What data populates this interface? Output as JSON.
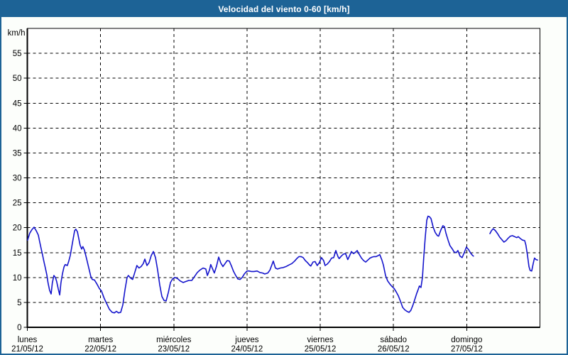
{
  "titlebar": {
    "title": "Velocidad del viento 0-60 [km/h]"
  },
  "chart_data": {
    "type": "line",
    "title": "Velocidad del viento 0-60 [km/h]",
    "unit_label": "km/h",
    "line_color": "#1414cc",
    "grid_style": "dashed",
    "y_axis": {
      "min": 0,
      "max": 60,
      "tick_step": 5,
      "tick_values": [
        0,
        5,
        10,
        15,
        20,
        25,
        30,
        35,
        40,
        45,
        50,
        55
      ],
      "grid_values": [
        5,
        10,
        15,
        20,
        25,
        30,
        35,
        40,
        45,
        50,
        55
      ]
    },
    "x_axis": {
      "range_hours": [
        0,
        168
      ],
      "day_boundary_hours": [
        24,
        48,
        72,
        96,
        120,
        144
      ],
      "days": [
        {
          "name": "lunes",
          "date": "21/05/12"
        },
        {
          "name": "martes",
          "date": "22/05/12"
        },
        {
          "name": "miércoles",
          "date": "23/05/12"
        },
        {
          "name": "jueves",
          "date": "24/05/12"
        },
        {
          "name": "viernes",
          "date": "25/05/12"
        },
        {
          "name": "sábado",
          "date": "26/05/12"
        },
        {
          "name": "domingo",
          "date": "27/05/12"
        }
      ]
    },
    "series": [
      {
        "name": "velocidad del viento",
        "color": "#1414cc",
        "points_format": "[hours_since_monday_00h, km/h]",
        "segments": [
          [
            [
              0.1,
              17.5
            ],
            [
              0.8,
              18.9
            ],
            [
              1.5,
              19.6
            ],
            [
              2.2,
              20.1
            ],
            [
              2.9,
              19.4
            ],
            [
              3.6,
              18.5
            ],
            [
              4.0,
              17.3
            ],
            [
              4.5,
              15.9
            ],
            [
              5.0,
              14.5
            ],
            [
              5.4,
              13.3
            ],
            [
              5.9,
              11.9
            ],
            [
              6.4,
              10.5
            ],
            [
              6.8,
              8.9
            ],
            [
              7.3,
              7.4
            ],
            [
              7.8,
              6.7
            ],
            [
              8.2,
              8.9
            ],
            [
              8.7,
              10.4
            ],
            [
              9.2,
              10.0
            ],
            [
              9.6,
              9.2
            ],
            [
              10.1,
              7.8
            ],
            [
              10.6,
              6.5
            ],
            [
              11.0,
              8.9
            ],
            [
              11.5,
              10.7
            ],
            [
              12.0,
              12.1
            ],
            [
              12.4,
              12.6
            ],
            [
              13.1,
              12.4
            ],
            [
              13.6,
              13.3
            ],
            [
              14.1,
              14.5
            ],
            [
              14.8,
              17.0
            ],
            [
              15.5,
              19.4
            ],
            [
              15.9,
              19.7
            ],
            [
              16.4,
              19.2
            ],
            [
              16.8,
              18.0
            ],
            [
              17.3,
              16.5
            ],
            [
              17.8,
              15.7
            ],
            [
              18.2,
              16.2
            ],
            [
              18.7,
              15.5
            ],
            [
              19.4,
              13.8
            ],
            [
              20.1,
              12.0
            ],
            [
              20.8,
              10.2
            ],
            [
              21.3,
              9.6
            ],
            [
              22.0,
              9.5
            ],
            [
              22.7,
              8.8
            ],
            [
              23.6,
              7.8
            ],
            [
              24.3,
              7.3
            ],
            [
              25.2,
              5.8
            ],
            [
              25.9,
              4.9
            ],
            [
              26.9,
              3.6
            ],
            [
              27.8,
              3.0
            ],
            [
              28.5,
              2.9
            ],
            [
              29.2,
              3.2
            ],
            [
              29.9,
              2.9
            ],
            [
              30.6,
              3.0
            ],
            [
              31.3,
              4.5
            ],
            [
              32.0,
              7.5
            ],
            [
              32.7,
              10.0
            ],
            [
              33.1,
              10.4
            ],
            [
              33.8,
              9.9
            ],
            [
              34.5,
              9.6
            ],
            [
              35.2,
              11.0
            ],
            [
              35.9,
              12.4
            ],
            [
              36.6,
              11.9
            ],
            [
              37.3,
              12.2
            ],
            [
              38.0,
              12.8
            ],
            [
              38.5,
              13.7
            ],
            [
              39.2,
              12.4
            ],
            [
              39.9,
              13.0
            ],
            [
              40.6,
              14.4
            ],
            [
              41.3,
              15.2
            ],
            [
              42.0,
              14.0
            ],
            [
              42.7,
              11.5
            ],
            [
              43.4,
              8.5
            ],
            [
              44.1,
              6.2
            ],
            [
              44.8,
              5.4
            ],
            [
              45.5,
              5.3
            ],
            [
              46.2,
              7.0
            ],
            [
              46.9,
              9.0
            ],
            [
              47.6,
              9.7
            ],
            [
              48.3,
              10.0
            ],
            [
              49.2,
              9.8
            ],
            [
              50.1,
              9.3
            ],
            [
              51.1,
              9.0
            ],
            [
              52.0,
              9.2
            ],
            [
              52.9,
              9.4
            ],
            [
              53.9,
              9.4
            ],
            [
              54.8,
              10.2
            ],
            [
              55.7,
              11.0
            ],
            [
              56.6,
              11.5
            ],
            [
              57.6,
              11.9
            ],
            [
              58.5,
              11.7
            ],
            [
              59.0,
              10.4
            ],
            [
              59.7,
              11.5
            ],
            [
              60.1,
              12.6
            ],
            [
              60.8,
              11.6
            ],
            [
              61.3,
              10.9
            ],
            [
              62.0,
              12.3
            ],
            [
              62.7,
              14.1
            ],
            [
              63.4,
              12.9
            ],
            [
              64.1,
              12.2
            ],
            [
              64.8,
              12.8
            ],
            [
              65.5,
              13.4
            ],
            [
              66.2,
              13.3
            ],
            [
              66.9,
              12.3
            ],
            [
              67.6,
              11.2
            ],
            [
              68.3,
              10.4
            ],
            [
              69.0,
              9.7
            ],
            [
              69.7,
              9.6
            ],
            [
              70.4,
              10.0
            ],
            [
              71.1,
              10.7
            ],
            [
              72.0,
              11.3
            ],
            [
              72.7,
              11.3
            ],
            [
              73.4,
              11.2
            ],
            [
              74.3,
              11.2
            ],
            [
              75.3,
              11.3
            ],
            [
              76.2,
              11.0
            ],
            [
              77.1,
              10.9
            ],
            [
              77.8,
              10.7
            ],
            [
              78.8,
              10.9
            ],
            [
              79.5,
              11.5
            ],
            [
              80.6,
              13.3
            ],
            [
              81.3,
              11.9
            ],
            [
              82.0,
              11.7
            ],
            [
              82.9,
              11.9
            ],
            [
              83.9,
              12.0
            ],
            [
              84.8,
              12.2
            ],
            [
              85.7,
              12.5
            ],
            [
              86.7,
              12.8
            ],
            [
              87.6,
              13.3
            ],
            [
              88.3,
              13.8
            ],
            [
              89.0,
              14.2
            ],
            [
              89.7,
              14.2
            ],
            [
              90.4,
              14.0
            ],
            [
              91.1,
              13.4
            ],
            [
              91.8,
              13.0
            ],
            [
              92.5,
              12.5
            ],
            [
              92.9,
              12.3
            ],
            [
              93.6,
              13.1
            ],
            [
              94.3,
              13.2
            ],
            [
              95.0,
              12.4
            ],
            [
              95.7,
              13.0
            ],
            [
              96.4,
              14.0
            ],
            [
              97.1,
              13.4
            ],
            [
              97.6,
              12.4
            ],
            [
              98.3,
              12.7
            ],
            [
              99.0,
              13.2
            ],
            [
              99.7,
              13.9
            ],
            [
              100.4,
              14.0
            ],
            [
              101.1,
              15.4
            ],
            [
              101.8,
              14.2
            ],
            [
              102.2,
              13.8
            ],
            [
              102.9,
              14.3
            ],
            [
              103.6,
              14.7
            ],
            [
              104.3,
              14.8
            ],
            [
              105.0,
              13.6
            ],
            [
              105.7,
              14.5
            ],
            [
              106.2,
              15.2
            ],
            [
              106.9,
              14.8
            ],
            [
              107.4,
              15.0
            ],
            [
              108.1,
              15.4
            ],
            [
              108.8,
              14.6
            ],
            [
              109.5,
              13.9
            ],
            [
              110.2,
              13.4
            ],
            [
              110.9,
              13.1
            ],
            [
              111.6,
              13.5
            ],
            [
              112.3,
              13.9
            ],
            [
              113.0,
              14.1
            ],
            [
              113.6,
              14.2
            ],
            [
              114.3,
              14.2
            ],
            [
              115.0,
              14.4
            ],
            [
              115.5,
              14.6
            ],
            [
              116.2,
              13.5
            ],
            [
              116.7,
              12.5
            ],
            [
              117.4,
              10.4
            ],
            [
              118.1,
              9.3
            ],
            [
              118.8,
              8.7
            ],
            [
              119.5,
              8.2
            ],
            [
              120.2,
              7.8
            ],
            [
              120.9,
              7.1
            ],
            [
              121.6,
              6.3
            ],
            [
              122.3,
              5.2
            ],
            [
              123.0,
              4.0
            ],
            [
              123.7,
              3.5
            ],
            [
              124.4,
              3.2
            ],
            [
              125.1,
              3.0
            ],
            [
              125.7,
              3.4
            ],
            [
              126.4,
              4.5
            ],
            [
              127.1,
              5.8
            ],
            [
              127.6,
              6.8
            ],
            [
              128.1,
              7.6
            ],
            [
              128.5,
              8.3
            ],
            [
              129.0,
              8.0
            ],
            [
              129.5,
              10.0
            ],
            [
              129.9,
              14.0
            ],
            [
              130.4,
              18.0
            ],
            [
              130.9,
              21.5
            ],
            [
              131.3,
              22.3
            ],
            [
              131.8,
              22.2
            ],
            [
              132.3,
              21.8
            ],
            [
              133.0,
              20.1
            ],
            [
              133.7,
              19.0
            ],
            [
              134.4,
              18.4
            ],
            [
              134.8,
              18.3
            ],
            [
              135.5,
              19.5
            ],
            [
              136.2,
              20.4
            ],
            [
              136.7,
              20.2
            ],
            [
              137.2,
              18.9
            ],
            [
              137.9,
              17.5
            ],
            [
              138.5,
              16.4
            ],
            [
              139.2,
              15.8
            ],
            [
              139.9,
              15.1
            ],
            [
              140.6,
              15.0
            ],
            [
              141.1,
              15.4
            ],
            [
              141.8,
              14.3
            ],
            [
              142.5,
              14.0
            ],
            [
              143.2,
              15.0
            ],
            [
              143.9,
              16.1
            ],
            [
              144.6,
              15.6
            ],
            [
              145.3,
              14.9
            ],
            [
              145.8,
              14.5
            ],
            [
              146.2,
              14.3
            ]
          ],
          [
            [
              151.6,
              18.8
            ],
            [
              152.1,
              19.4
            ],
            [
              152.7,
              19.8
            ],
            [
              153.4,
              19.4
            ],
            [
              154.1,
              18.8
            ],
            [
              154.8,
              18.1
            ],
            [
              155.5,
              17.6
            ],
            [
              156.2,
              17.1
            ],
            [
              156.9,
              17.4
            ],
            [
              157.6,
              17.9
            ],
            [
              158.3,
              18.3
            ],
            [
              159.0,
              18.4
            ],
            [
              159.7,
              18.2
            ],
            [
              160.4,
              18.0
            ],
            [
              160.9,
              18.2
            ],
            [
              161.6,
              17.8
            ],
            [
              162.3,
              17.5
            ],
            [
              163.0,
              17.4
            ],
            [
              163.4,
              16.5
            ],
            [
              163.9,
              14.5
            ],
            [
              164.4,
              12.2
            ],
            [
              164.8,
              11.4
            ],
            [
              165.3,
              11.3
            ],
            [
              165.8,
              12.8
            ],
            [
              166.2,
              13.9
            ],
            [
              166.7,
              13.6
            ],
            [
              167.2,
              13.5
            ]
          ]
        ]
      }
    ]
  }
}
